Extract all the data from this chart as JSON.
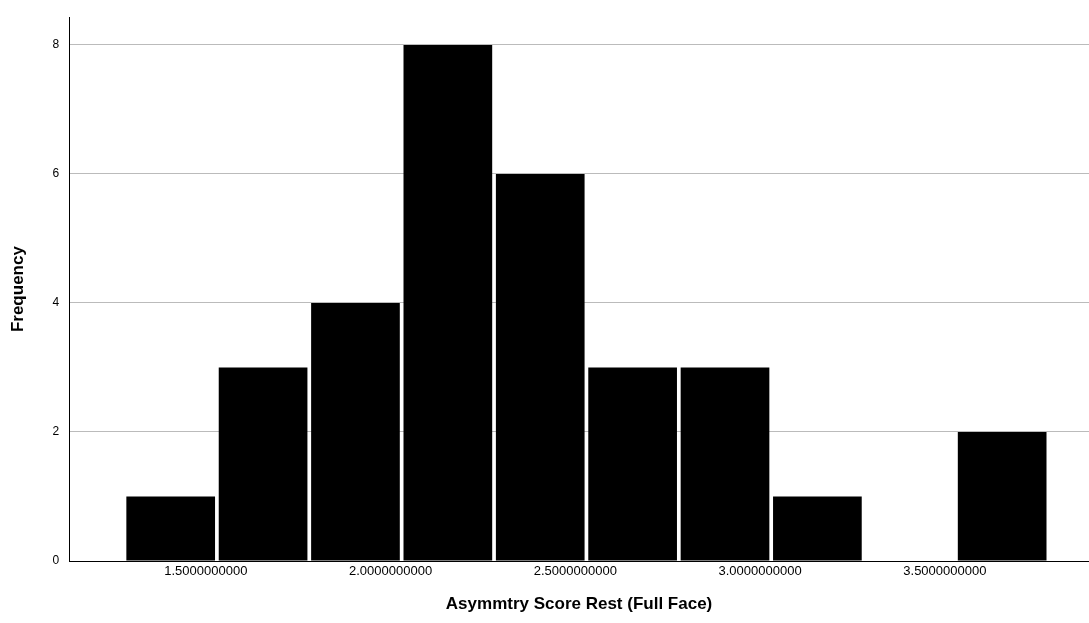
{
  "chart_data": {
    "type": "histogram",
    "xlabel": "Asymmtry Score Rest (Full Face)",
    "ylabel": "Frequency",
    "bins": [
      1.28,
      1.53,
      1.78,
      2.03,
      2.28,
      2.53,
      2.78,
      3.03,
      3.28,
      3.53,
      3.78
    ],
    "values": [
      1,
      3,
      4,
      8,
      6,
      3,
      3,
      1,
      0,
      2
    ],
    "color": "#000000",
    "xlim": [
      1.13,
      3.89
    ],
    "xticks": [
      {
        "value": 1.5,
        "label": "1.5000000000"
      },
      {
        "value": 2.0,
        "label": "2.0000000000"
      },
      {
        "value": 2.5,
        "label": "2.5000000000"
      },
      {
        "value": 3.0,
        "label": "3.0000000000"
      },
      {
        "value": 3.5,
        "label": "3.5000000000"
      }
    ],
    "ylim": [
      0,
      8.43
    ],
    "yticks": [
      0,
      2,
      4,
      6,
      8
    ],
    "grid": "y",
    "legend": false
  }
}
